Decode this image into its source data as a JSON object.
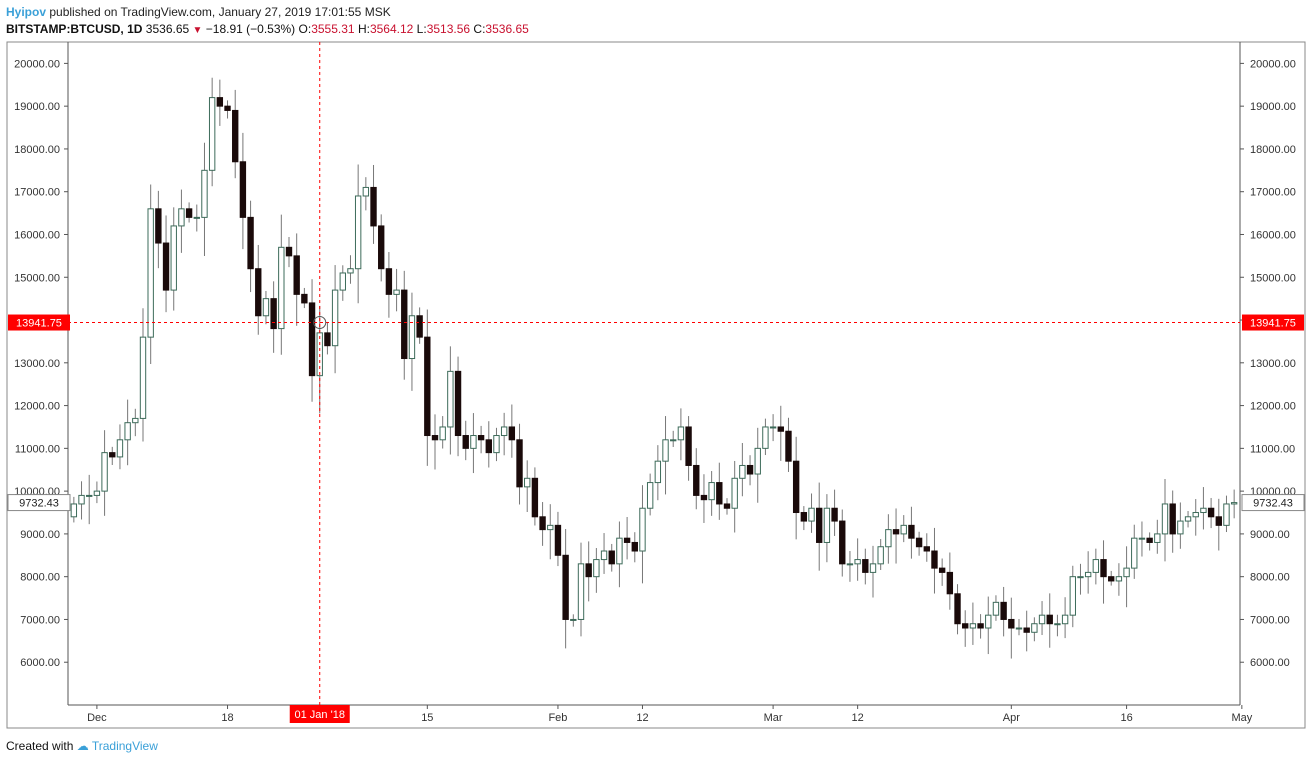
{
  "header": {
    "author": "Hyipov",
    "published_text": "published on TradingView.com, January 27, 2019 17:01:55 MSK",
    "symbol": "BITSTAMP:BTCUSD, 1D",
    "last": "3536.65",
    "change": "−18.91 (−0.53%)",
    "o_label": "O:",
    "o_value": "3555.31",
    "h_label": "H:",
    "h_value": "3564.12",
    "l_label": "L:",
    "l_value": "3513.56",
    "c_label": "C:",
    "c_value": "3536.65"
  },
  "footer": {
    "created_with": "Created with",
    "brand": "TradingView"
  },
  "crosshair": {
    "price_label": "13941.75",
    "price": 13941.75,
    "date_label": "01 Jan '18",
    "date_index": 32
  },
  "last_price": {
    "label": "9732.43",
    "value": 9732.43
  },
  "colors": {
    "up_fill": "#ffffff",
    "up_border": "#3d6b5a",
    "down": "#1a0a0a",
    "wick": "#777777",
    "crosshair": "#ff0000"
  },
  "chart_data": {
    "type": "candlestick",
    "ylim": [
      5000,
      20500
    ],
    "y_ticks": [
      6000,
      7000,
      8000,
      9000,
      10000,
      11000,
      12000,
      13000,
      14000,
      15000,
      16000,
      17000,
      18000,
      19000,
      20000
    ],
    "y_tick_labels": [
      "6000.00",
      "7000.00",
      "8000.00",
      "9000.00",
      "10000.00",
      "11000.00",
      "12000.00",
      "13000.00",
      "14000.00",
      "15000.00",
      "16000.00",
      "17000.00",
      "18000.00",
      "19000.00",
      "20000.00"
    ],
    "x_ticks": [
      {
        "label": "Dec",
        "index": 3
      },
      {
        "label": "18",
        "index": 20
      },
      {
        "label": "15",
        "index": 46
      },
      {
        "label": "Feb",
        "index": 63
      },
      {
        "label": "12",
        "index": 74
      },
      {
        "label": "Mar",
        "index": 91
      },
      {
        "label": "12",
        "index": 102
      },
      {
        "label": "Apr",
        "index": 122
      },
      {
        "label": "16",
        "index": 137
      },
      {
        "label": "May",
        "index": 152
      }
    ],
    "first_date": "2017-11-28",
    "last_date": "2018-05-03",
    "closes": [
      9700,
      9900,
      9900,
      10000,
      10900,
      10800,
      11200,
      11600,
      11700,
      13600,
      16600,
      15800,
      14700,
      16200,
      16600,
      16400,
      16400,
      17500,
      19200,
      19000,
      18900,
      17700,
      16400,
      15200,
      14100,
      14500,
      13800,
      15700,
      15500,
      14600,
      14400,
      12700,
      13700,
      13400,
      14700,
      15100,
      15200,
      16900,
      17100,
      16200,
      15200,
      14600,
      14700,
      13100,
      14100,
      13600,
      11300,
      11200,
      11500,
      12800,
      11300,
      11000,
      11300,
      11200,
      10900,
      11300,
      11500,
      11200,
      10100,
      10300,
      9400,
      9100,
      9200,
      8500,
      7000,
      7000,
      8300,
      8000,
      8400,
      8600,
      8300,
      8900,
      8800,
      8600,
      9600,
      10200,
      10700,
      11200,
      11200,
      11500,
      10600,
      9900,
      9800,
      10200,
      9700,
      9600,
      10300,
      10600,
      10400,
      11000,
      11500,
      11500,
      11400,
      10700,
      9500,
      9300,
      9600,
      8800,
      9600,
      9300,
      8300,
      8300,
      8400,
      8100,
      8300,
      8700,
      9100,
      9000,
      9200,
      8900,
      8700,
      8600,
      8200,
      8100,
      7600,
      6900,
      6800,
      6900,
      6800,
      7100,
      7400,
      7000,
      6800,
      6800,
      6700,
      6900,
      7100,
      6900,
      6900,
      7100,
      8000,
      8000,
      8100,
      8400,
      8000,
      7900,
      8000,
      8200,
      8900,
      8900,
      8800,
      9000,
      9700,
      9000,
      9300,
      9400,
      9500,
      9600,
      9400,
      9200,
      9700,
      9732
    ],
    "values_note": "daily closes, USD"
  }
}
